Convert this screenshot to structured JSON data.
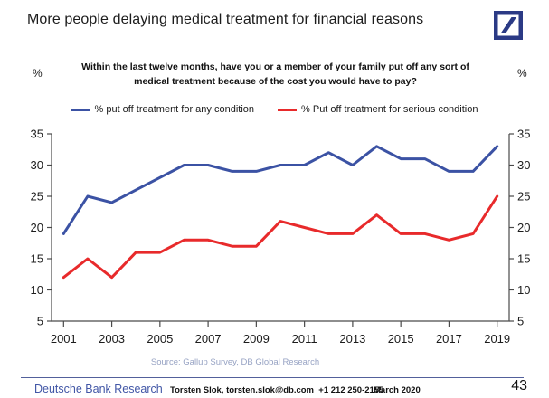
{
  "header": {
    "title": "More people delaying medical treatment for financial reasons",
    "logo": "deutsche-bank-slash-logo"
  },
  "chart_data": {
    "type": "line",
    "question": "Within the last twelve months, have you or a member of your family put off any sort of medical treatment because of the cost you would have to pay?",
    "unit_left": "%",
    "unit_right": "%",
    "categories": [
      2001,
      2002,
      2003,
      2004,
      2005,
      2006,
      2007,
      2008,
      2009,
      2010,
      2011,
      2012,
      2013,
      2014,
      2015,
      2016,
      2017,
      2018,
      2019
    ],
    "x_tick_labels": [
      "2001",
      "2003",
      "2005",
      "2007",
      "2009",
      "2011",
      "2013",
      "2015",
      "2017",
      "2019"
    ],
    "y_ticks": [
      5,
      10,
      15,
      20,
      25,
      30,
      35
    ],
    "ylim": [
      5,
      35
    ],
    "grid": false,
    "legend_position": "top",
    "series": [
      {
        "name": "% put off treatment for any condition",
        "color": "#3B52A4",
        "values": [
          19,
          25,
          24,
          26,
          28,
          30,
          30,
          29,
          29,
          30,
          30,
          32,
          30,
          33,
          31,
          31,
          29,
          29,
          33
        ]
      },
      {
        "name": "% Put off treatment for serious condition",
        "color": "#E82A2B",
        "values": [
          12,
          15,
          12,
          16,
          16,
          18,
          18,
          17,
          17,
          21,
          20,
          19,
          19,
          22,
          19,
          19,
          18,
          19,
          25
        ]
      }
    ]
  },
  "source": "Source: Gallup Survey, DB Global Research",
  "footer": {
    "brand": "Deutsche Bank Research",
    "contact": "Torsten Slok, torsten.slok@db.com  +1 212 250-2155",
    "date": "March 2020",
    "page": "43"
  },
  "colors": {
    "series_blue": "#3B52A4",
    "series_red": "#E82A2B",
    "logo_navy": "#2B3A85",
    "brand_text": "#4156A6",
    "source_text": "#96A2C3",
    "divider": "#52609B",
    "axis": "#4a4a4a"
  }
}
